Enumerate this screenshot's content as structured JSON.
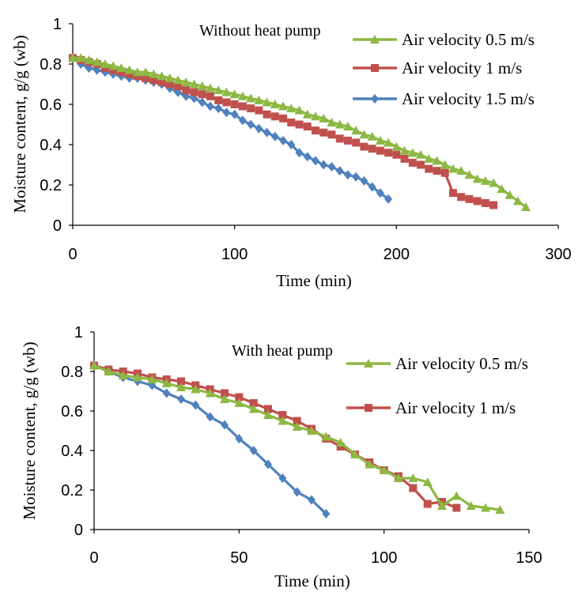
{
  "chart_data": [
    {
      "type": "line",
      "title": "",
      "annotation": "Without heat pump",
      "xlabel": "Time (min)",
      "ylabel": "Moisture content, g/g (wb)",
      "xlim": [
        0,
        300
      ],
      "ylim": [
        0,
        1
      ],
      "x_ticks": [
        "0",
        "100",
        "200",
        "300"
      ],
      "y_ticks": [
        "0",
        "0.2",
        "0.4",
        "0.6",
        "0.8",
        "1"
      ],
      "grid": false,
      "legend_position": "top-right",
      "series": [
        {
          "name": "Air velocity 0.5 m/s",
          "color": "#8DB843",
          "marker": "triangle",
          "x": [
            0,
            5,
            10,
            15,
            20,
            25,
            30,
            35,
            40,
            45,
            50,
            55,
            60,
            65,
            70,
            75,
            80,
            85,
            90,
            95,
            100,
            105,
            110,
            115,
            120,
            125,
            130,
            135,
            140,
            145,
            150,
            155,
            160,
            165,
            170,
            175,
            180,
            185,
            190,
            195,
            200,
            205,
            210,
            215,
            220,
            225,
            230,
            235,
            240,
            245,
            250,
            255,
            260,
            265,
            270,
            275,
            280
          ],
          "y": [
            0.83,
            0.83,
            0.82,
            0.81,
            0.8,
            0.79,
            0.78,
            0.77,
            0.76,
            0.76,
            0.75,
            0.74,
            0.73,
            0.72,
            0.71,
            0.7,
            0.69,
            0.68,
            0.67,
            0.66,
            0.65,
            0.64,
            0.63,
            0.62,
            0.61,
            0.6,
            0.59,
            0.58,
            0.57,
            0.55,
            0.54,
            0.53,
            0.51,
            0.5,
            0.49,
            0.47,
            0.45,
            0.44,
            0.42,
            0.41,
            0.39,
            0.37,
            0.36,
            0.35,
            0.33,
            0.32,
            0.3,
            0.28,
            0.27,
            0.25,
            0.23,
            0.22,
            0.21,
            0.18,
            0.15,
            0.12,
            0.09
          ]
        },
        {
          "name": "Air velocity 1  m/s",
          "color": "#C0504D",
          "marker": "square",
          "x": [
            0,
            5,
            10,
            15,
            20,
            25,
            30,
            35,
            40,
            45,
            50,
            55,
            60,
            65,
            70,
            75,
            80,
            85,
            90,
            95,
            100,
            105,
            110,
            115,
            120,
            125,
            130,
            135,
            140,
            145,
            150,
            155,
            160,
            165,
            170,
            175,
            180,
            185,
            190,
            195,
            200,
            205,
            210,
            215,
            220,
            225,
            230,
            235,
            240,
            245,
            250,
            255,
            260
          ],
          "y": [
            0.83,
            0.82,
            0.81,
            0.8,
            0.78,
            0.77,
            0.76,
            0.75,
            0.74,
            0.73,
            0.72,
            0.71,
            0.7,
            0.69,
            0.67,
            0.66,
            0.65,
            0.64,
            0.62,
            0.61,
            0.6,
            0.59,
            0.58,
            0.57,
            0.55,
            0.54,
            0.53,
            0.51,
            0.5,
            0.49,
            0.47,
            0.46,
            0.45,
            0.43,
            0.42,
            0.41,
            0.39,
            0.38,
            0.37,
            0.36,
            0.35,
            0.33,
            0.31,
            0.3,
            0.28,
            0.27,
            0.26,
            0.16,
            0.14,
            0.13,
            0.12,
            0.11,
            0.1
          ]
        },
        {
          "name": "Air velocity 1.5   m/s",
          "color": "#4F81BD",
          "marker": "diamond",
          "x": [
            0,
            5,
            10,
            15,
            20,
            25,
            30,
            35,
            40,
            45,
            50,
            55,
            60,
            65,
            70,
            75,
            80,
            85,
            90,
            95,
            100,
            105,
            110,
            115,
            120,
            125,
            130,
            135,
            140,
            145,
            150,
            155,
            160,
            165,
            170,
            175,
            180,
            185,
            190,
            195
          ],
          "y": [
            0.83,
            0.8,
            0.78,
            0.77,
            0.76,
            0.75,
            0.74,
            0.73,
            0.73,
            0.72,
            0.71,
            0.7,
            0.68,
            0.66,
            0.64,
            0.63,
            0.61,
            0.59,
            0.58,
            0.56,
            0.55,
            0.52,
            0.5,
            0.48,
            0.46,
            0.44,
            0.42,
            0.4,
            0.36,
            0.34,
            0.32,
            0.3,
            0.29,
            0.27,
            0.25,
            0.24,
            0.22,
            0.19,
            0.16,
            0.13
          ]
        }
      ]
    },
    {
      "type": "line",
      "title": "",
      "annotation": "With heat pump",
      "xlabel": "Time (min)",
      "ylabel": "Moisture content, g/g (wb)",
      "xlim": [
        0,
        150
      ],
      "ylim": [
        0,
        1
      ],
      "x_ticks": [
        "0",
        "50",
        "100",
        "150"
      ],
      "y_ticks": [
        "0",
        "0.2",
        "0.4",
        "0.6",
        "0.8",
        "1"
      ],
      "grid": false,
      "legend_position": "top-right",
      "series": [
        {
          "name": "Air velocity 0.5 m/s",
          "color": "#8DB843",
          "marker": "triangle",
          "show_in_legend": true,
          "x": [
            0,
            5,
            10,
            15,
            20,
            25,
            30,
            35,
            40,
            45,
            50,
            55,
            60,
            65,
            70,
            75,
            80,
            85,
            90,
            95,
            100,
            105,
            110,
            115,
            120,
            125,
            130,
            135,
            140
          ],
          "y": [
            0.83,
            0.8,
            0.78,
            0.77,
            0.76,
            0.74,
            0.72,
            0.71,
            0.69,
            0.66,
            0.64,
            0.61,
            0.58,
            0.55,
            0.52,
            0.5,
            0.47,
            0.44,
            0.38,
            0.33,
            0.3,
            0.26,
            0.26,
            0.24,
            0.12,
            0.17,
            0.12,
            0.11,
            0.1
          ]
        },
        {
          "name": "Air velocity 1  m/s",
          "color": "#C0504D",
          "marker": "square",
          "show_in_legend": true,
          "x": [
            0,
            5,
            10,
            15,
            20,
            25,
            30,
            35,
            40,
            45,
            50,
            55,
            60,
            65,
            70,
            75,
            80,
            85,
            90,
            95,
            100,
            105,
            110,
            115,
            120,
            125
          ],
          "y": [
            0.83,
            0.81,
            0.8,
            0.79,
            0.77,
            0.76,
            0.75,
            0.73,
            0.71,
            0.69,
            0.67,
            0.64,
            0.61,
            0.58,
            0.55,
            0.51,
            0.46,
            0.42,
            0.38,
            0.34,
            0.3,
            0.27,
            0.21,
            0.13,
            0.14,
            0.11
          ]
        },
        {
          "name": "",
          "color": "#4F81BD",
          "marker": "diamond",
          "show_in_legend": false,
          "x": [
            0,
            5,
            10,
            15,
            20,
            25,
            30,
            35,
            40,
            45,
            50,
            55,
            60,
            65,
            70,
            75,
            80
          ],
          "y": [
            0.83,
            0.8,
            0.77,
            0.75,
            0.73,
            0.69,
            0.66,
            0.63,
            0.57,
            0.53,
            0.46,
            0.4,
            0.33,
            0.26,
            0.19,
            0.15,
            0.08
          ]
        }
      ]
    }
  ]
}
